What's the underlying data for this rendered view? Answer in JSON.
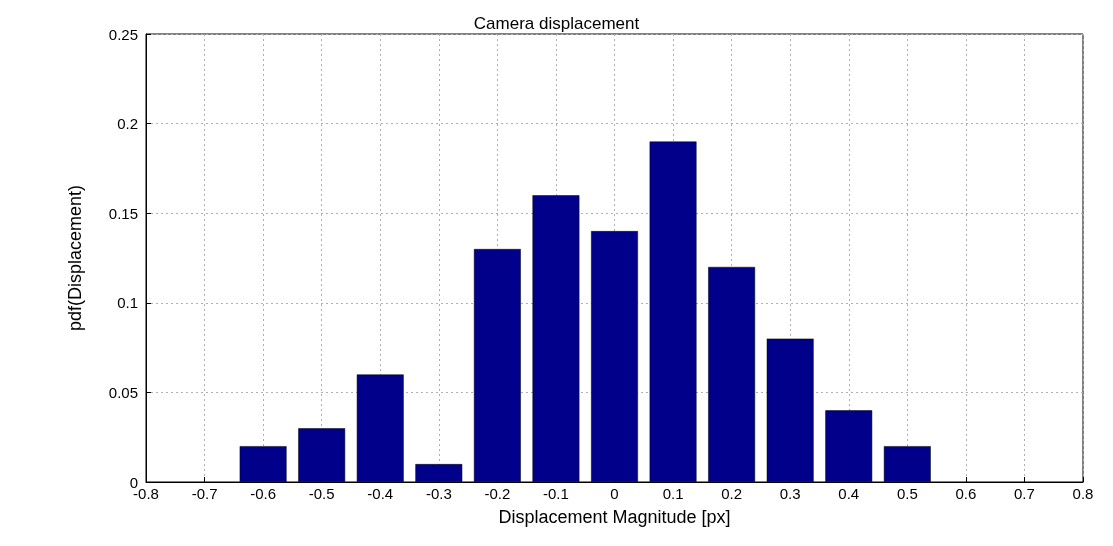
{
  "chart_data": {
    "type": "bar",
    "title": "Camera displacement",
    "xlabel": "Displacement Magnitude [px]",
    "ylabel": "pdf(Displacement)",
    "x": [
      -0.6,
      -0.5,
      -0.4,
      -0.3,
      -0.2,
      -0.1,
      0,
      0.1,
      0.2,
      0.3,
      0.4,
      0.5
    ],
    "values": [
      0.02,
      0.03,
      0.06,
      0.01,
      0.13,
      0.16,
      0.14,
      0.19,
      0.12,
      0.08,
      0.04,
      0.02
    ],
    "color": "#00008b",
    "xlim": [
      -0.8,
      0.8
    ],
    "xticks": [
      -0.8,
      -0.7,
      -0.6,
      -0.5,
      -0.4,
      -0.3,
      -0.2,
      -0.1,
      0,
      0.1,
      0.2,
      0.3,
      0.4,
      0.5,
      0.6,
      0.7,
      0.8
    ],
    "ylim": [
      0,
      0.25
    ],
    "yticks": [
      0,
      0.05,
      0.1,
      0.15,
      0.2,
      0.25
    ],
    "grid": true
  }
}
